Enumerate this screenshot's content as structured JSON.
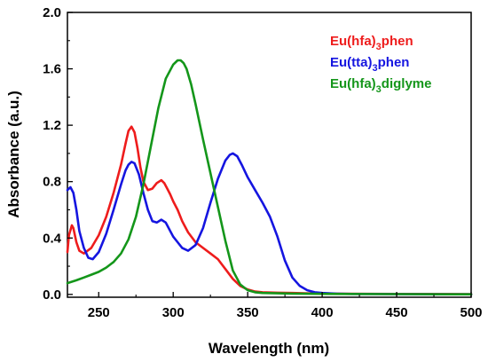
{
  "chart_data": {
    "type": "line",
    "title": "",
    "xlabel": "Wavelength (nm)",
    "ylabel": "Absorbance (a.u.)",
    "xlim": [
      229,
      500
    ],
    "ylim": [
      -0.02,
      2.0
    ],
    "xticks": [
      250,
      300,
      350,
      400,
      450,
      500
    ],
    "yticks": [
      0.0,
      0.4,
      0.8,
      1.2,
      1.6,
      2.0
    ],
    "xtick_labels": [
      "250",
      "300",
      "350",
      "400",
      "450",
      "500"
    ],
    "ytick_labels": [
      "0.0",
      "0.4",
      "0.8",
      "1.2",
      "1.6",
      "2.0"
    ],
    "grid": false,
    "legend_position": "top-right",
    "series": [
      {
        "label_parts": [
          "Eu(hfa)",
          "3",
          "phen"
        ],
        "color": "#ee1c1c",
        "x": [
          229,
          230,
          232,
          233,
          235,
          237,
          240,
          245,
          250,
          255,
          260,
          265,
          268,
          270,
          272,
          274,
          276,
          278,
          280,
          283,
          286,
          289,
          292,
          294,
          296,
          298,
          300,
          303,
          306,
          310,
          315,
          320,
          325,
          330,
          335,
          340,
          345,
          350,
          355,
          360,
          370,
          380,
          400,
          450,
          500
        ],
        "y": [
          0.3,
          0.42,
          0.49,
          0.47,
          0.37,
          0.31,
          0.29,
          0.33,
          0.42,
          0.55,
          0.72,
          0.92,
          1.07,
          1.16,
          1.19,
          1.15,
          1.04,
          0.9,
          0.8,
          0.74,
          0.75,
          0.79,
          0.81,
          0.79,
          0.75,
          0.71,
          0.66,
          0.6,
          0.52,
          0.44,
          0.37,
          0.33,
          0.29,
          0.25,
          0.18,
          0.11,
          0.06,
          0.035,
          0.02,
          0.015,
          0.012,
          0.01,
          0.005,
          0.003,
          0.002
        ]
      },
      {
        "label_parts": [
          "Eu(tta)",
          "3",
          "phen"
        ],
        "color": "#1515e0",
        "x": [
          229,
          231,
          233,
          235,
          237,
          240,
          243,
          246,
          250,
          255,
          260,
          265,
          268,
          270,
          272,
          274,
          277,
          280,
          283,
          286,
          289,
          292,
          295,
          298,
          300,
          303,
          306,
          310,
          315,
          320,
          325,
          330,
          335,
          338,
          340,
          343,
          346,
          350,
          355,
          360,
          365,
          370,
          375,
          380,
          385,
          390,
          395,
          400,
          410,
          420,
          450,
          500
        ],
        "y": [
          0.74,
          0.76,
          0.72,
          0.6,
          0.45,
          0.33,
          0.26,
          0.25,
          0.3,
          0.43,
          0.6,
          0.78,
          0.88,
          0.92,
          0.94,
          0.93,
          0.85,
          0.72,
          0.6,
          0.52,
          0.51,
          0.53,
          0.51,
          0.45,
          0.41,
          0.37,
          0.33,
          0.31,
          0.35,
          0.47,
          0.65,
          0.82,
          0.95,
          0.99,
          1.0,
          0.98,
          0.92,
          0.83,
          0.74,
          0.65,
          0.55,
          0.41,
          0.24,
          0.12,
          0.06,
          0.03,
          0.015,
          0.01,
          0.005,
          0.003,
          0.002,
          0.001
        ]
      },
      {
        "label_parts": [
          "Eu(hfa)",
          "3",
          "diglyme"
        ],
        "color": "#14961a",
        "x": [
          229,
          235,
          240,
          245,
          250,
          255,
          260,
          265,
          270,
          275,
          280,
          285,
          290,
          295,
          300,
          303,
          305,
          307,
          309,
          312,
          315,
          320,
          325,
          330,
          335,
          340,
          345,
          350,
          355,
          360,
          370,
          380,
          400,
          450,
          500
        ],
        "y": [
          0.08,
          0.1,
          0.12,
          0.14,
          0.16,
          0.19,
          0.23,
          0.29,
          0.39,
          0.55,
          0.78,
          1.05,
          1.32,
          1.53,
          1.63,
          1.66,
          1.66,
          1.64,
          1.6,
          1.49,
          1.35,
          1.1,
          0.86,
          0.62,
          0.38,
          0.17,
          0.07,
          0.03,
          0.015,
          0.01,
          0.008,
          0.006,
          0.004,
          0.002,
          0.001
        ]
      }
    ]
  }
}
